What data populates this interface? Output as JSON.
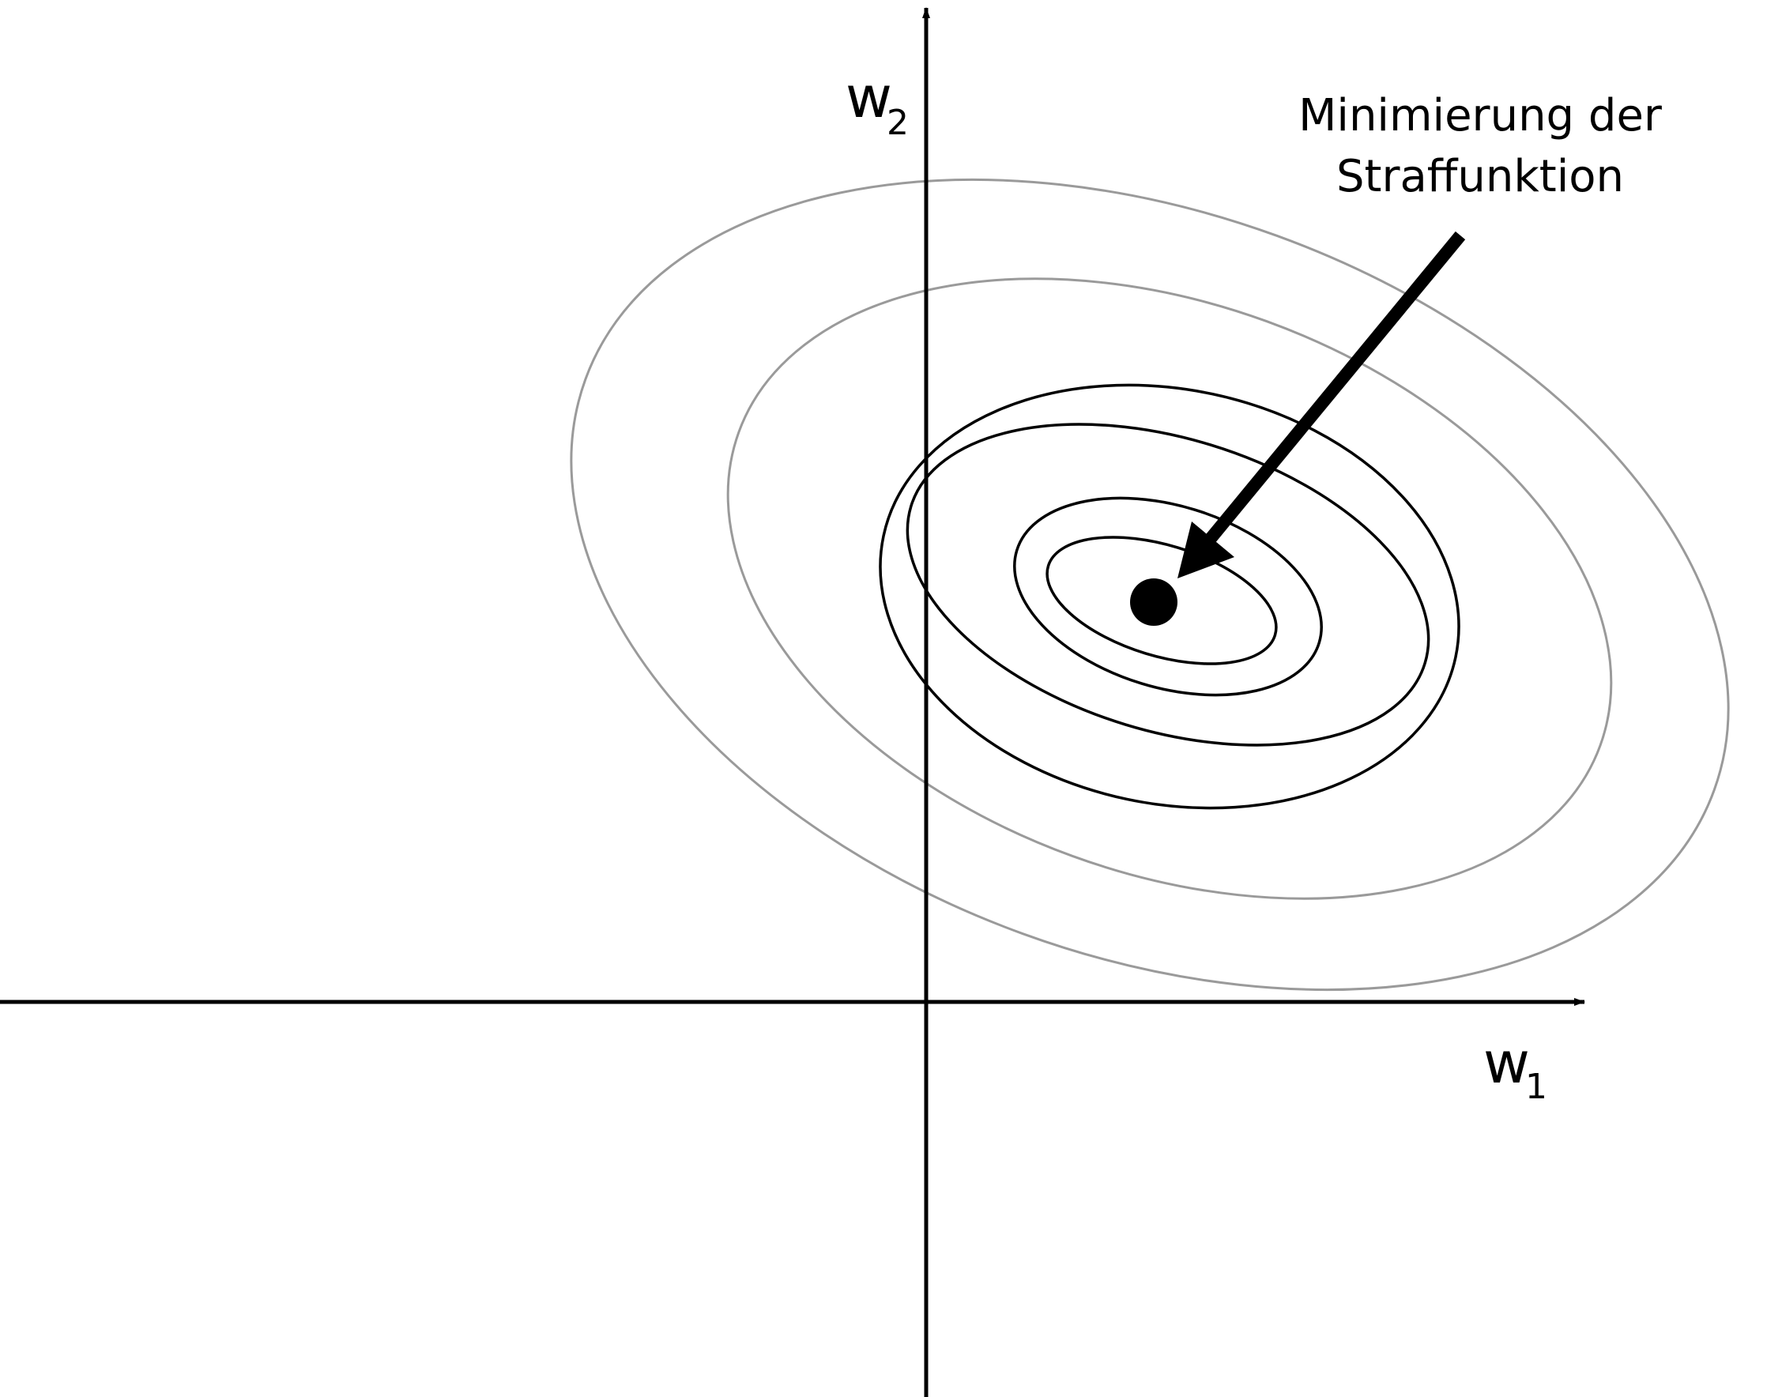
{
  "axes": {
    "x_label": "w",
    "x_label_sub": "1",
    "y_label": "w",
    "y_label_sub": "2"
  },
  "annotation": {
    "line1": "Minimierung der",
    "line2": "Straffunktion"
  },
  "colors": {
    "axis": "#000000",
    "contour_outer": "#9a9a9a",
    "contour_inner": "#000000",
    "minimum_point": "#000000"
  }
}
